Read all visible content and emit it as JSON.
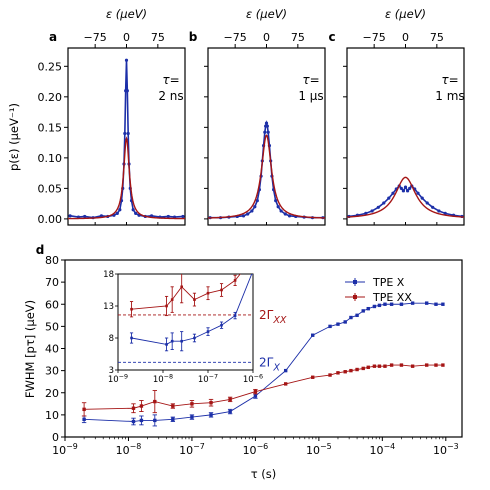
{
  "chart_data": [
    {
      "id": "a",
      "panel_label": "a",
      "type": "line",
      "xlabel": "ε (μeV)",
      "ylabel": "p(ε) (μeV⁻¹)",
      "xlim": [
        -140,
        140
      ],
      "ylim": [
        -0.01,
        0.28
      ],
      "xticks": [
        -75,
        0,
        75
      ],
      "xtick_labels": [
        "−75",
        "0",
        "75"
      ],
      "yticks": [
        0.0,
        0.05,
        0.1,
        0.15,
        0.2,
        0.25
      ],
      "ytick_labels": [
        "0.00",
        "0.05",
        "0.10",
        "0.15",
        "0.20",
        "0.25"
      ],
      "annotation": [
        "τ=",
        "2 ns"
      ],
      "series": [
        {
          "color": "#1c2fa8",
          "kind": "data",
          "width": 1.6,
          "x": [
            -135,
            -115,
            -100,
            -80,
            -60,
            -45,
            -30,
            -22,
            -16,
            -12,
            -9,
            -6,
            -4,
            -2,
            0,
            2,
            4,
            6,
            9,
            12,
            16,
            22,
            30,
            45,
            60,
            80,
            100,
            115,
            135
          ],
          "y": [
            0.005,
            0.003,
            0.004,
            0.002,
            0.005,
            0.004,
            0.006,
            0.009,
            0.015,
            0.03,
            0.05,
            0.09,
            0.14,
            0.21,
            0.26,
            0.21,
            0.14,
            0.09,
            0.05,
            0.03,
            0.015,
            0.009,
            0.006,
            0.004,
            0.005,
            0.003,
            0.004,
            0.003,
            0.004
          ]
        },
        {
          "color": "#a51515",
          "kind": "fit",
          "width": 1.4,
          "gamma": 8.2,
          "amp": 0.132
        }
      ]
    },
    {
      "id": "b",
      "panel_label": "b",
      "type": "line",
      "xlabel": "ε (μeV)",
      "xlim": [
        -140,
        140
      ],
      "ylim": [
        -0.01,
        0.28
      ],
      "xticks": [
        -75,
        0,
        75
      ],
      "xtick_labels": [
        "−75",
        "0",
        "75"
      ],
      "yticks": [
        0.0,
        0.05,
        0.1,
        0.15,
        0.2,
        0.25
      ],
      "annotation": [
        "τ=",
        "1 μs"
      ],
      "series": [
        {
          "color": "#1c2fa8",
          "kind": "data",
          "width": 1.6,
          "x": [
            -135,
            -110,
            -90,
            -70,
            -55,
            -45,
            -35,
            -28,
            -22,
            -17,
            -13,
            -10,
            -7,
            -4,
            -2,
            0,
            2,
            4,
            7,
            10,
            13,
            17,
            22,
            28,
            35,
            45,
            55,
            70,
            90,
            110,
            135
          ],
          "y": [
            0.002,
            0.002,
            0.003,
            0.004,
            0.005,
            0.008,
            0.013,
            0.02,
            0.03,
            0.048,
            0.07,
            0.095,
            0.12,
            0.142,
            0.152,
            0.157,
            0.152,
            0.142,
            0.12,
            0.095,
            0.07,
            0.048,
            0.03,
            0.02,
            0.013,
            0.008,
            0.005,
            0.004,
            0.003,
            0.002,
            0.002
          ]
        },
        {
          "color": "#a51515",
          "kind": "fit",
          "width": 1.4,
          "gamma": 14.5,
          "amp": 0.137
        }
      ]
    },
    {
      "id": "c",
      "panel_label": "c",
      "type": "line",
      "xlabel": "ε (μeV)",
      "xlim": [
        -140,
        140
      ],
      "ylim": [
        -0.01,
        0.28
      ],
      "xticks": [
        -75,
        0,
        75
      ],
      "xtick_labels": [
        "−75",
        "0",
        "75"
      ],
      "yticks": [
        0.0,
        0.05,
        0.1,
        0.15,
        0.2,
        0.25
      ],
      "annotation": [
        "τ=",
        "1 ms"
      ],
      "series": [
        {
          "color": "#1c2fa8",
          "kind": "data",
          "width": 1.6,
          "x": [
            -135,
            -115,
            -95,
            -80,
            -65,
            -52,
            -40,
            -30,
            -22,
            -15,
            -10,
            -5,
            0,
            5,
            10,
            15,
            22,
            30,
            40,
            52,
            65,
            80,
            95,
            115,
            135
          ],
          "y": [
            0.004,
            0.006,
            0.009,
            0.013,
            0.019,
            0.026,
            0.034,
            0.042,
            0.049,
            0.054,
            0.05,
            0.046,
            0.052,
            0.046,
            0.05,
            0.054,
            0.049,
            0.042,
            0.034,
            0.026,
            0.019,
            0.013,
            0.009,
            0.006,
            0.004
          ]
        },
        {
          "color": "#a51515",
          "kind": "fit",
          "width": 1.4,
          "gamma": 30,
          "amp": 0.068
        }
      ]
    },
    {
      "id": "d",
      "panel_label": "d",
      "type": "line",
      "xlabel": "τ (s)",
      "ylabel": "FWHM [pτ] (μeV)",
      "xscale": "log",
      "xlim": [
        1e-09,
        0.0018
      ],
      "ylim": [
        0,
        80
      ],
      "xtick_exponents": [
        -9,
        -8,
        -7,
        -6,
        -5,
        -4,
        -3
      ],
      "yticks": [
        0,
        10,
        20,
        30,
        40,
        50,
        60,
        70,
        80
      ],
      "ytick_labels": [
        "0",
        "10",
        "20",
        "30",
        "40",
        "50",
        "60",
        "70",
        "80"
      ],
      "legend": {
        "location": "top-right",
        "entries": [
          "TPE X",
          "TPE XX"
        ]
      },
      "series": [
        {
          "name": "TPE X",
          "color": "#1c2fa8",
          "x": [
            2e-09,
            1.2e-08,
            1.6e-08,
            2.6e-08,
            5e-08,
            1e-07,
            2e-07,
            4e-07,
            1e-06,
            3e-06,
            8e-06,
            1.5e-05,
            2e-05,
            2.6e-05,
            3.2e-05,
            4e-05,
            5e-05,
            6e-05,
            7.5e-05,
            9e-05,
            0.00011,
            0.00014,
            0.0002,
            0.0003,
            0.0005,
            0.0007,
            0.0009
          ],
          "y": [
            8,
            7,
            7.5,
            7.5,
            8,
            9,
            10,
            11.5,
            18.5,
            30,
            46,
            50,
            51,
            52,
            54,
            55,
            57,
            58,
            59,
            59.5,
            60,
            60,
            60,
            60.5,
            60.5,
            60,
            60
          ],
          "err": [
            1.5,
            1.5,
            2,
            2.5,
            1,
            1,
            1,
            1,
            1,
            0,
            0,
            0,
            0,
            0,
            0,
            0,
            0,
            0,
            0,
            0,
            0,
            0,
            0,
            0,
            0,
            0,
            0
          ]
        },
        {
          "name": "TPE XX",
          "color": "#a51515",
          "x": [
            2e-09,
            1.2e-08,
            1.6e-08,
            2.6e-08,
            5e-08,
            1e-07,
            2e-07,
            4e-07,
            1e-06,
            3e-06,
            8e-06,
            1.5e-05,
            2e-05,
            2.6e-05,
            3.2e-05,
            4e-05,
            5e-05,
            6e-05,
            7.5e-05,
            9e-05,
            0.00011,
            0.00014,
            0.0002,
            0.0003,
            0.0005,
            0.0007,
            0.0009
          ],
          "y": [
            12.5,
            13,
            14,
            16,
            14,
            15,
            15.5,
            17,
            20.5,
            24,
            27,
            28,
            29,
            29.5,
            30,
            30.5,
            31,
            31.5,
            32,
            32,
            32,
            32.5,
            32.5,
            32,
            32.5,
            32.5,
            32.5
          ],
          "err": [
            3,
            2,
            2.5,
            5,
            1,
            1.5,
            1.5,
            1,
            1,
            0,
            0,
            0,
            0,
            0,
            0,
            0,
            0,
            0,
            0,
            0,
            0,
            0,
            0,
            0,
            0,
            0,
            0
          ]
        }
      ]
    },
    {
      "id": "inset",
      "type": "line",
      "xscale": "log",
      "xlim": [
        1e-09,
        1e-06
      ],
      "ylim": [
        3,
        18
      ],
      "xtick_exponents": [
        -9,
        -8,
        -7,
        -6
      ],
      "yticks": [
        3,
        8,
        13,
        18
      ],
      "ytick_labels": [
        "3",
        "8",
        "13",
        "18"
      ],
      "reference_lines": [
        {
          "y": 4.2,
          "color": "#1c2fa8",
          "label": "2Γ",
          "sub": "X"
        },
        {
          "y": 11.6,
          "color": "#a51515",
          "label": "2Γ",
          "sub": "XX"
        }
      ],
      "series": [
        {
          "name": "TPE X",
          "color": "#1c2fa8",
          "x": [
            2e-09,
            1.2e-08,
            1.6e-08,
            2.6e-08,
            5e-08,
            1e-07,
            2e-07,
            4e-07,
            1e-06
          ],
          "y": [
            8,
            7,
            7.5,
            7.5,
            8,
            9,
            10,
            11.5,
            18.5
          ],
          "err": [
            0.8,
            1,
            1.3,
            1.5,
            0.6,
            0.6,
            0.5,
            0.5,
            0.5
          ]
        },
        {
          "name": "TPE XX",
          "color": "#a51515",
          "x": [
            2e-09,
            1.2e-08,
            1.6e-08,
            2.6e-08,
            5e-08,
            1e-07,
            2e-07,
            4e-07,
            1e-06
          ],
          "y": [
            12.5,
            13,
            14,
            16,
            14,
            15,
            15.5,
            17,
            20.5
          ],
          "err": [
            1.2,
            1.5,
            2,
            2.5,
            1,
            1,
            1,
            0.8,
            0.8
          ]
        }
      ]
    }
  ]
}
